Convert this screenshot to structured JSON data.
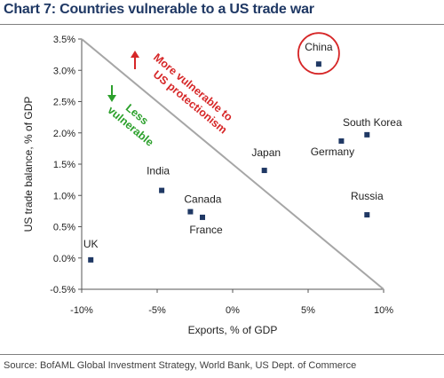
{
  "header": {
    "title": "Chart 7: Countries vulnerable to a US trade war"
  },
  "footer": {
    "source": "Source: BofAML Global Investment Strategy, World Bank, US Dept. of Commerce"
  },
  "colors": {
    "title": "#1f3864",
    "marker": "#1f3864",
    "diagonal": "#a6a6a6",
    "highlight_circle": "#d62728",
    "more_vulnerable": "#d62728",
    "less_vulnerable": "#2ca02c"
  },
  "chart_data": {
    "type": "scatter",
    "title": "",
    "xlabel": "Exports, % of GDP",
    "ylabel": "US trade balance, % of GDP",
    "xlim": [
      -10,
      10
    ],
    "ylim": [
      -0.5,
      3.5
    ],
    "x_ticks": [
      "-10%",
      "-5%",
      "0%",
      "5%",
      "10%"
    ],
    "y_ticks": [
      "-0.5%",
      "0.0%",
      "0.5%",
      "1.0%",
      "1.5%",
      "2.0%",
      "2.5%",
      "3.0%",
      "3.5%"
    ],
    "grid": false,
    "points": [
      {
        "name": "China",
        "x": 5.7,
        "y": 3.1,
        "highlighted": true
      },
      {
        "name": "South Korea",
        "x": 8.9,
        "y": 1.97
      },
      {
        "name": "Germany",
        "x": 7.2,
        "y": 1.87
      },
      {
        "name": "Japan",
        "x": 2.1,
        "y": 1.4
      },
      {
        "name": "India",
        "x": -4.7,
        "y": 1.08
      },
      {
        "name": "Canada",
        "x": -2.8,
        "y": 0.74
      },
      {
        "name": "France",
        "x": -2.0,
        "y": 0.65
      },
      {
        "name": "Russia",
        "x": 8.9,
        "y": 0.69
      },
      {
        "name": "UK",
        "x": -9.4,
        "y": -0.03
      }
    ],
    "divider_line": {
      "from": [
        -10,
        3.5
      ],
      "to": [
        10,
        -0.5
      ]
    },
    "annotations": {
      "more_vulnerable": [
        "More vulnerable to",
        "US protectionism"
      ],
      "less_vulnerable": [
        "Less",
        "vulnerable"
      ]
    }
  }
}
